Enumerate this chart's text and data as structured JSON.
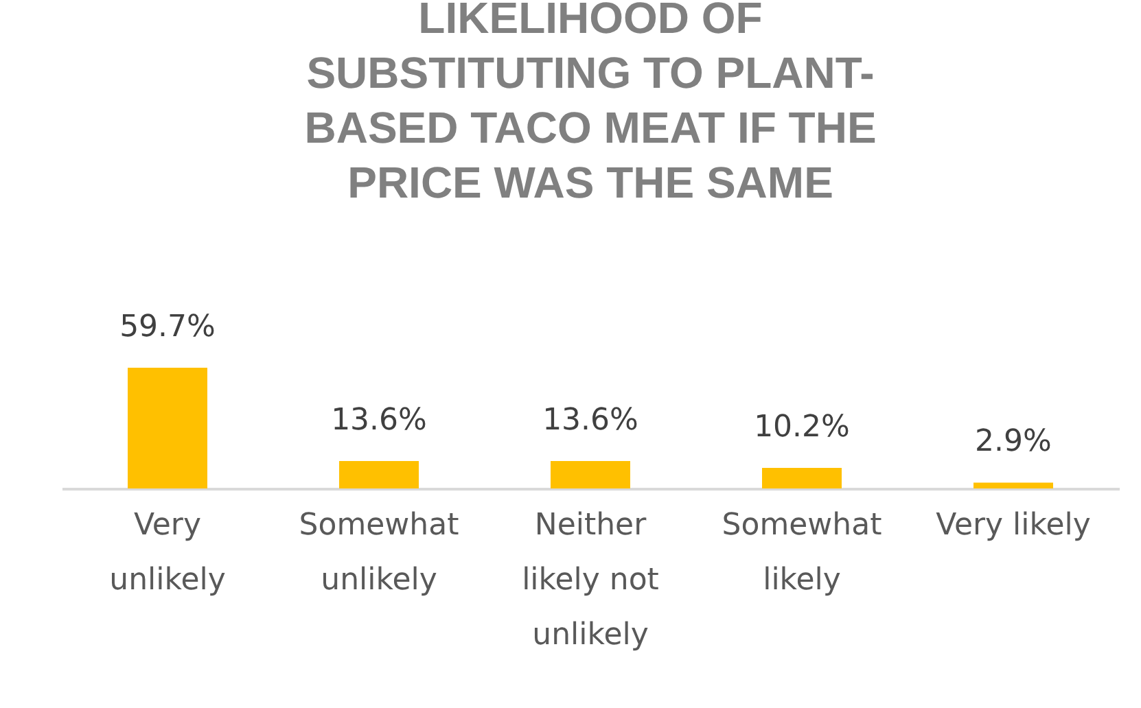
{
  "chart_data": {
    "type": "bar",
    "title": "LIKELIHOOD OF SUBSTITUTING TO PLANT-BASED TACO MEAT IF THE PRICE WAS THE SAME",
    "categories": [
      "Very unlikely",
      "Somewhat unlikely",
      "Neither likely not unlikely",
      "Somewhat likely",
      "Very likely"
    ],
    "values": [
      59.7,
      13.6,
      13.6,
      10.2,
      2.9
    ],
    "value_labels": [
      "59.7%",
      "13.6%",
      "13.6%",
      "10.2%",
      "2.9%"
    ],
    "color": "#ffc000"
  }
}
